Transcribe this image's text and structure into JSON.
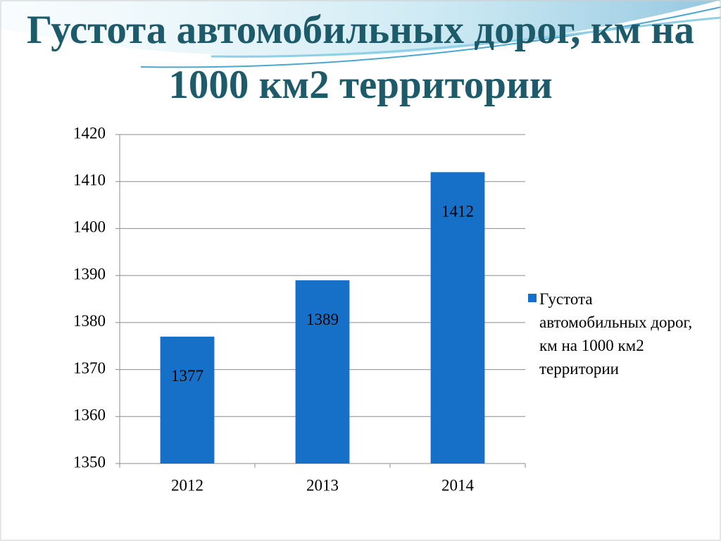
{
  "chart_data": {
    "type": "bar",
    "title": "Густота автомобильных дорог, км на 1000 км2 территории",
    "categories": [
      "2012",
      "2013",
      "2014"
    ],
    "series": [
      {
        "name": "Густота автомобильных дорог, км на 1000 км2 территории",
        "color": "#1670c8",
        "values": [
          1377,
          1389,
          1412
        ]
      }
    ],
    "ylim": [
      1350,
      1420
    ],
    "yticks": [
      1350,
      1360,
      1370,
      1380,
      1390,
      1400,
      1410,
      1420
    ],
    "grid": true,
    "legend": "right",
    "data_labels": true
  }
}
